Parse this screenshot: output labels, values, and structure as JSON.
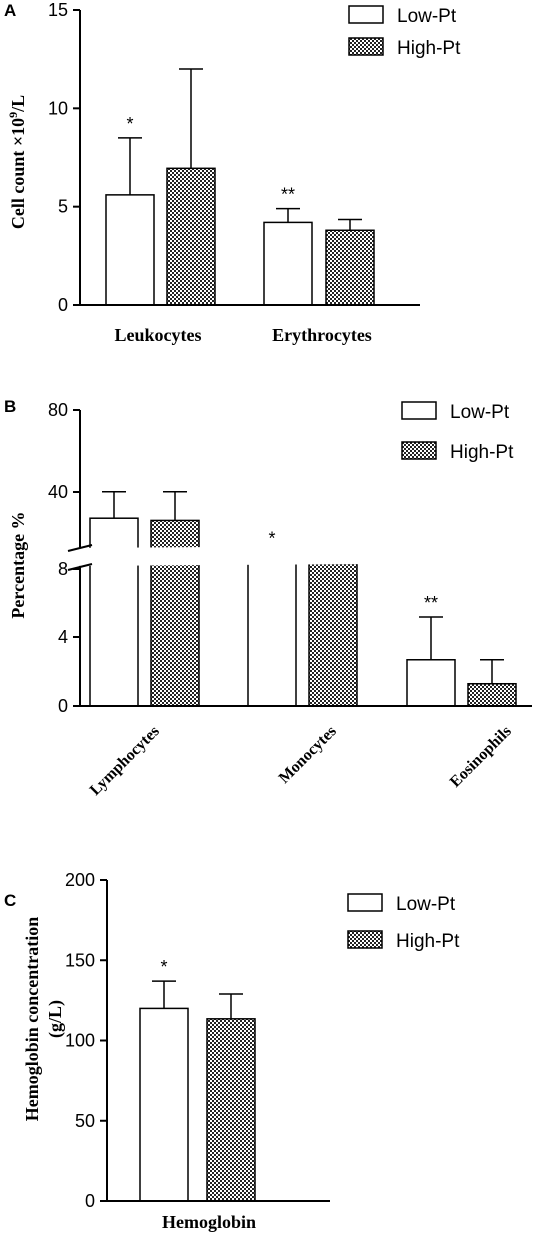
{
  "chart_data": [
    {
      "panel": "A",
      "type": "bar",
      "ylabel_main": "Cell count ×10",
      "ylabel_sup": "9",
      "ylabel_tail": "/L",
      "categories": [
        "Leukocytes",
        "Erythrocytes"
      ],
      "series": [
        {
          "name": "Low-Pt",
          "values": [
            5.6,
            4.2
          ],
          "errors": [
            2.9,
            0.7
          ],
          "significance": [
            "*",
            "**"
          ]
        },
        {
          "name": "High-Pt",
          "values": [
            6.95,
            3.8
          ],
          "errors": [
            5.05,
            0.55
          ],
          "significance": [
            "",
            ""
          ]
        }
      ],
      "yticks": [
        "0",
        "5",
        "10",
        "15"
      ],
      "ylim": [
        0,
        15
      ],
      "legend_position": "top-right"
    },
    {
      "panel": "B",
      "type": "bar",
      "ylabel": "Percentage %",
      "categories": [
        "Lymphocytes",
        "Monocytes",
        "Eosinophils"
      ],
      "series": [
        {
          "name": "Low-Pt",
          "values": [
            31,
            11.5,
            2.7
          ],
          "errors": [
            12,
            4,
            2.5
          ],
          "significance": [
            "",
            "*",
            "**"
          ]
        },
        {
          "name": "High-Pt",
          "values": [
            30,
            10.5,
            1.3
          ],
          "errors": [
            13,
            4,
            1.4
          ],
          "significance": [
            "",
            "",
            ""
          ]
        }
      ],
      "yticks": [
        "0",
        "4",
        "8",
        "40",
        "80"
      ],
      "ylim": [
        0,
        80
      ],
      "axis_break": [
        8,
        8
      ],
      "legend_position": "top-right"
    },
    {
      "panel": "C",
      "type": "bar",
      "ylabel_line1": "Hemoglobin concentration",
      "ylabel_line2": "(g/L)",
      "categories": [
        "Hemoglobin"
      ],
      "series": [
        {
          "name": "Low-Pt",
          "values": [
            120
          ],
          "errors": [
            17
          ],
          "significance": [
            "*"
          ]
        },
        {
          "name": "High-Pt",
          "values": [
            113.5
          ],
          "errors": [
            15.5
          ],
          "significance": [
            ""
          ]
        }
      ],
      "yticks": [
        "0",
        "50",
        "100",
        "150",
        "200"
      ],
      "ylim": [
        0,
        200
      ],
      "legend_position": "top-right"
    }
  ]
}
